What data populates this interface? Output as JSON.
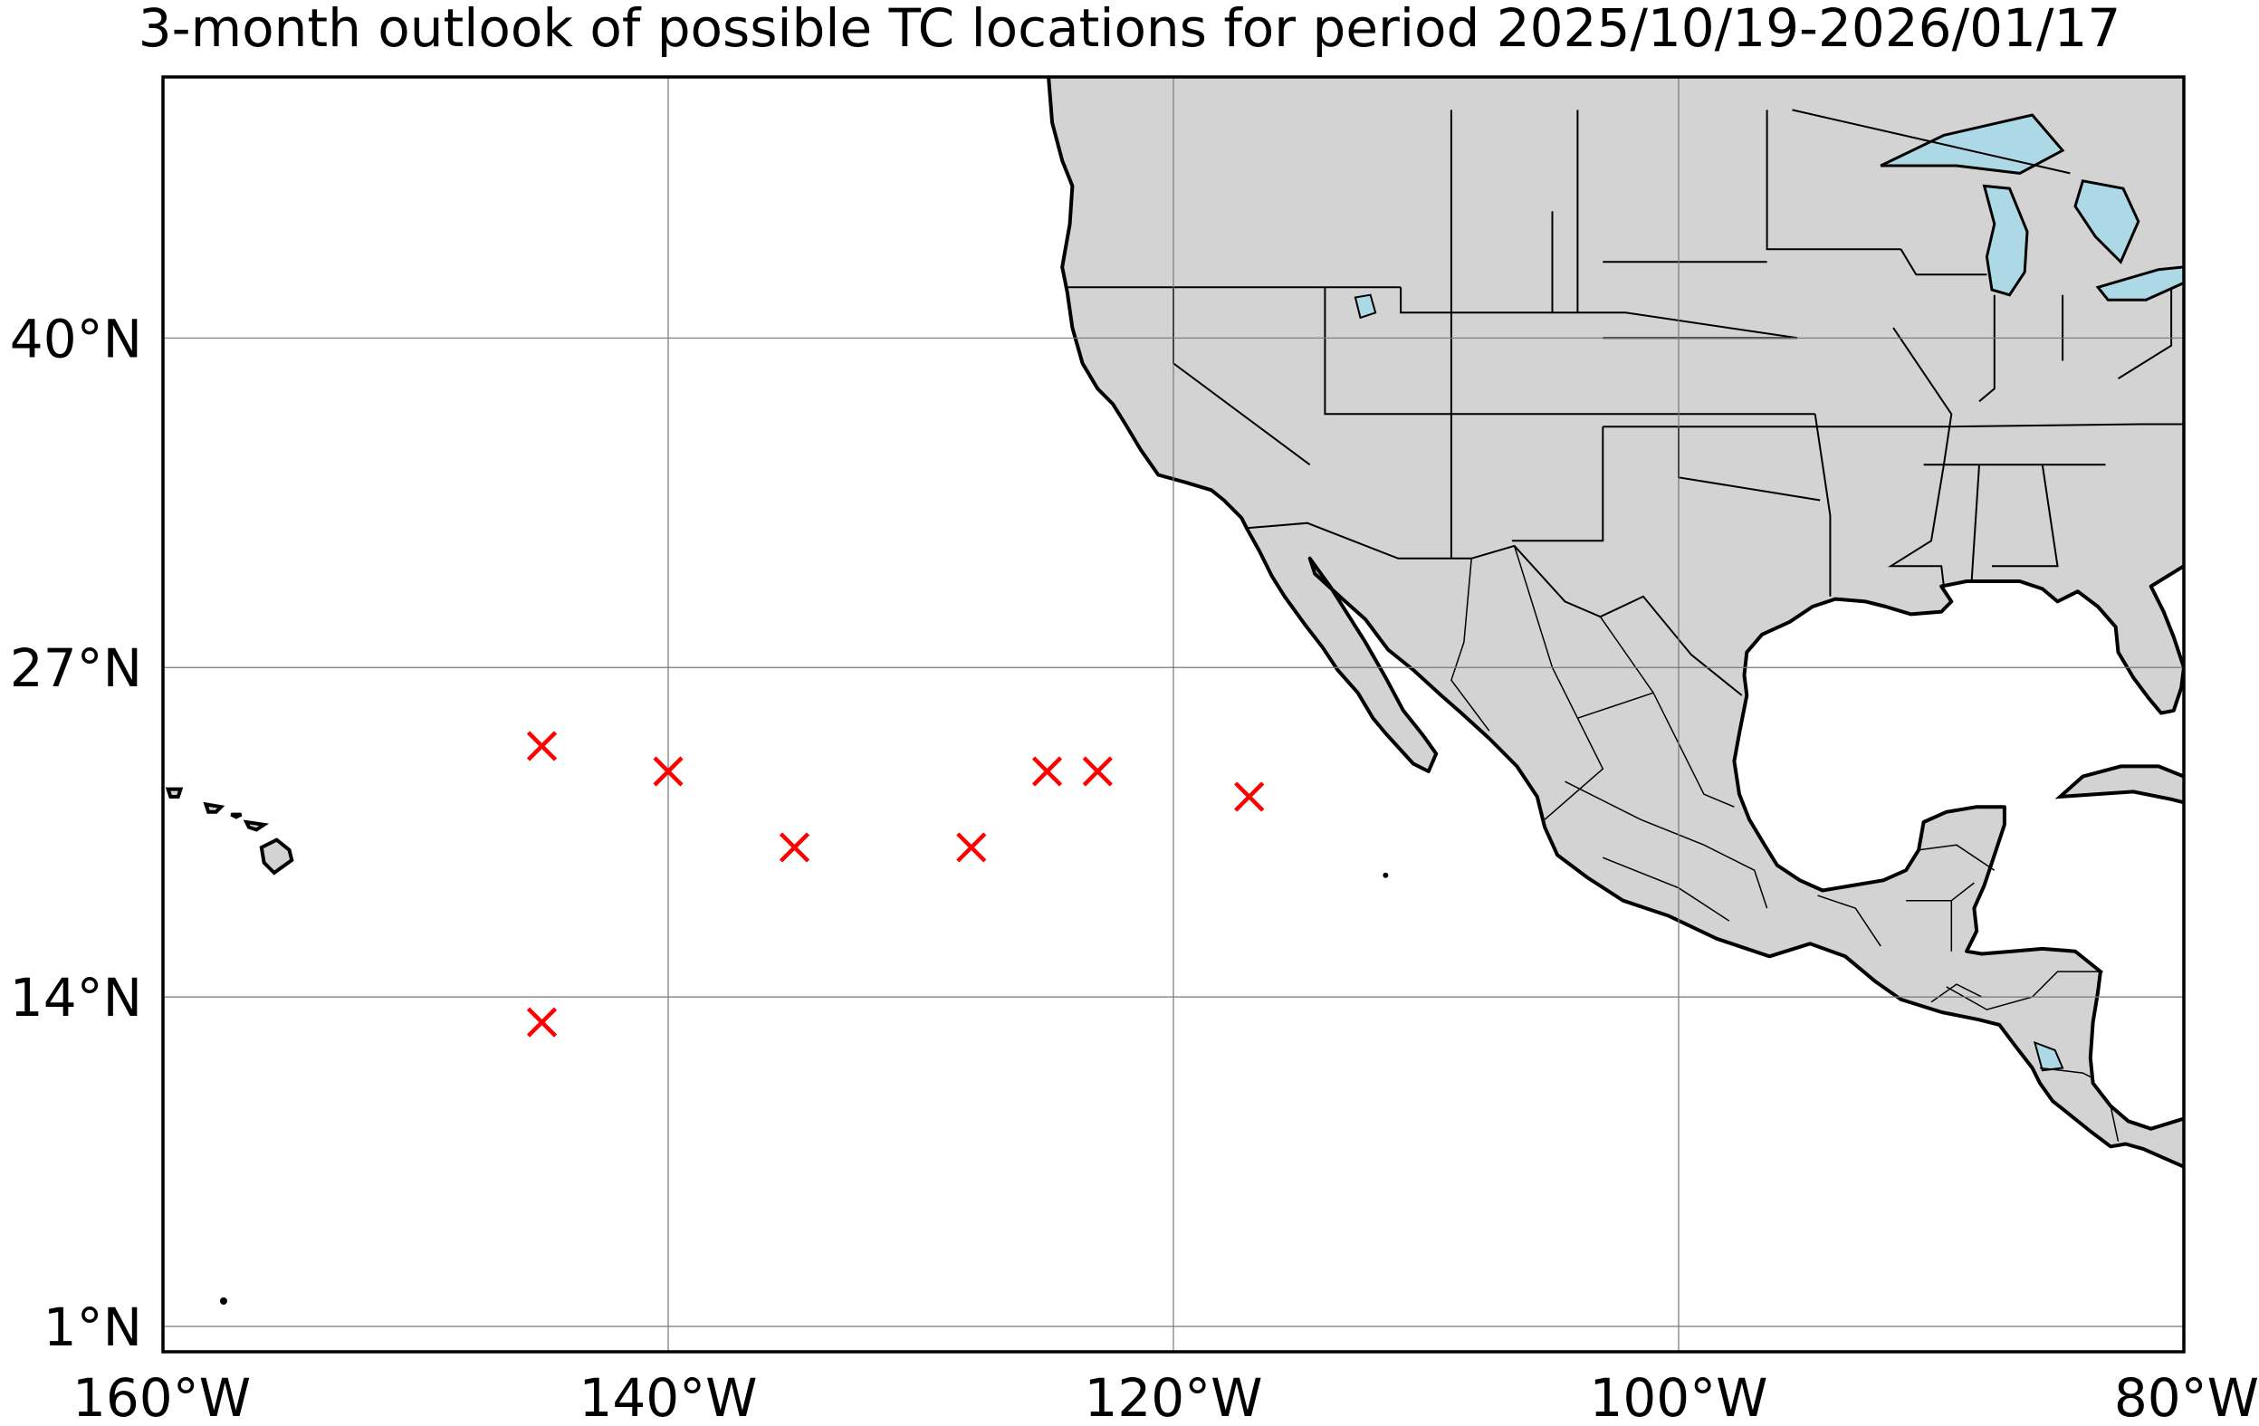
{
  "title": "3-month outlook of possible TC locations for period 2025/10/19-2026/01/17",
  "map": {
    "projection": "equirectangular",
    "lon_range": [
      -160,
      -80
    ],
    "lat_range": [
      0,
      50.3
    ],
    "land_color": "#d3d3d3",
    "water_color": "#add8e6",
    "marker_color": "#ff0000",
    "marker_symbol": "x",
    "grid": true
  },
  "lon_ticks": [
    {
      "value": -160,
      "label": "160°W"
    },
    {
      "value": -140,
      "label": "140°W"
    },
    {
      "value": -120,
      "label": "120°W"
    },
    {
      "value": -100,
      "label": "100°W"
    },
    {
      "value": -80,
      "label": "80°W"
    }
  ],
  "lat_ticks": [
    {
      "value": 40,
      "label": "40°N"
    },
    {
      "value": 27,
      "label": "27°N"
    },
    {
      "value": 14,
      "label": "14°N"
    },
    {
      "value": 1,
      "label": "1°N"
    }
  ],
  "chart_data": {
    "type": "scatter",
    "title": "3-month outlook of possible TC locations for period 2025/10/19-2026/01/17",
    "x_units": "degrees longitude",
    "y_units": "degrees latitude",
    "xlim": [
      -160,
      -80
    ],
    "ylim": [
      0,
      50.3
    ],
    "series": [
      {
        "points": [
          {
            "lon": -145.0,
            "lat": 23.9
          },
          {
            "lon": -140.0,
            "lat": 22.9
          },
          {
            "lon": -135.0,
            "lat": 19.9
          },
          {
            "lon": -128.0,
            "lat": 19.9
          },
          {
            "lon": -125.0,
            "lat": 22.9
          },
          {
            "lon": -123.0,
            "lat": 22.9
          },
          {
            "lon": -117.0,
            "lat": 21.9
          },
          {
            "lon": -145.0,
            "lat": 13.0
          }
        ]
      }
    ]
  }
}
